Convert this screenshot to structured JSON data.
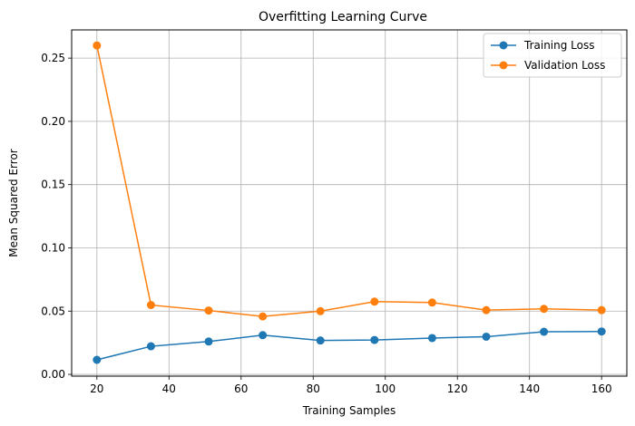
{
  "chart_data": {
    "type": "line",
    "title": "Overfitting Learning Curve",
    "xlabel": "Training Samples",
    "ylabel": "Mean Squared Error",
    "x": [
      20,
      35,
      51,
      66,
      82,
      97,
      113,
      128,
      144,
      160
    ],
    "series": [
      {
        "name": "Training Loss",
        "color": "#1f77b4",
        "values": [
          0.0115,
          0.0222,
          0.026,
          0.031,
          0.0268,
          0.0272,
          0.0287,
          0.0298,
          0.0337,
          0.0339
        ]
      },
      {
        "name": "Validation Loss",
        "color": "#ff7f0e",
        "values": [
          0.26,
          0.0548,
          0.0505,
          0.0458,
          0.05,
          0.0575,
          0.0568,
          0.0508,
          0.0518,
          0.0508
        ]
      }
    ],
    "xlim": [
      13,
      167
    ],
    "ylim": [
      -0.0014,
      0.2723
    ],
    "xticks": [
      "20",
      "40",
      "60",
      "80",
      "100",
      "120",
      "140",
      "160"
    ],
    "yticks": [
      "0.00",
      "0.05",
      "0.10",
      "0.15",
      "0.20",
      "0.25"
    ],
    "grid": true,
    "legend_position": "top-right"
  }
}
